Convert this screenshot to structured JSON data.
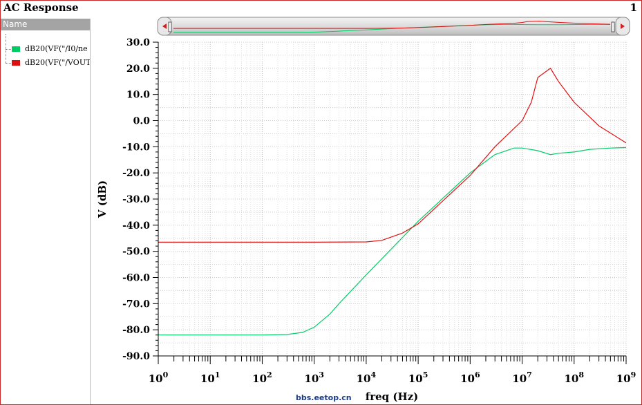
{
  "window": {
    "title": "AC Response",
    "page_number": "1"
  },
  "legend": {
    "header": "Name",
    "items": [
      {
        "label": "dB20(VF(\"/I0/ne",
        "color": "#00cc66"
      },
      {
        "label": "dB20(VF(\"/VOUT",
        "color": "#e01010"
      }
    ]
  },
  "watermark": "bbs.eetop.cn",
  "chart_data": {
    "type": "line",
    "xlabel": "freq (Hz)",
    "ylabel": "V (dB)",
    "xscale": "log",
    "xlim": [
      1,
      1000000000
    ],
    "ylim": [
      -90,
      30
    ],
    "yticks": [
      "30.0",
      "20.0",
      "10.0",
      "0.0",
      "-10.0",
      "-20.0",
      "-30.0",
      "-40.0",
      "-50.0",
      "-60.0",
      "-70.0",
      "-80.0",
      "-90.0"
    ],
    "xticks": [
      {
        "base": "10",
        "exp": "0"
      },
      {
        "base": "10",
        "exp": "1"
      },
      {
        "base": "10",
        "exp": "2"
      },
      {
        "base": "10",
        "exp": "3"
      },
      {
        "base": "10",
        "exp": "4"
      },
      {
        "base": "10",
        "exp": "5"
      },
      {
        "base": "10",
        "exp": "6"
      },
      {
        "base": "10",
        "exp": "7"
      },
      {
        "base": "10",
        "exp": "8"
      },
      {
        "base": "10",
        "exp": "9"
      }
    ],
    "grid": true,
    "series": [
      {
        "name": "dB20(VF(\"/I0/ne",
        "color": "#00cc66",
        "x": [
          1,
          10,
          100,
          300,
          600,
          1000,
          2000,
          3000,
          10000,
          100000,
          1000000,
          3000000,
          7000000,
          10000000,
          20000000,
          35000000,
          50000000,
          100000000,
          200000000,
          500000000,
          1000000000
        ],
        "y": [
          -82,
          -82,
          -82,
          -81.8,
          -81,
          -79,
          -74,
          -70,
          -59,
          -38.5,
          -20,
          -13,
          -10.5,
          -10.5,
          -11.5,
          -13,
          -12.5,
          -12,
          -11,
          -10.5,
          -10.3
        ]
      },
      {
        "name": "dB20(VF(\"/VOUT",
        "color": "#e01010",
        "x": [
          1,
          10,
          100,
          1000,
          10000,
          20000,
          50000,
          100000,
          1000000,
          3000000,
          10000000,
          15000000,
          20000000,
          35000000,
          50000000,
          100000000,
          300000000,
          1000000000
        ],
        "y": [
          -46.5,
          -46.5,
          -46.5,
          -46.5,
          -46.4,
          -45.8,
          -43,
          -39.5,
          -21,
          -10,
          0,
          7,
          16.5,
          20,
          15,
          7,
          -2,
          -8.5
        ]
      }
    ]
  }
}
